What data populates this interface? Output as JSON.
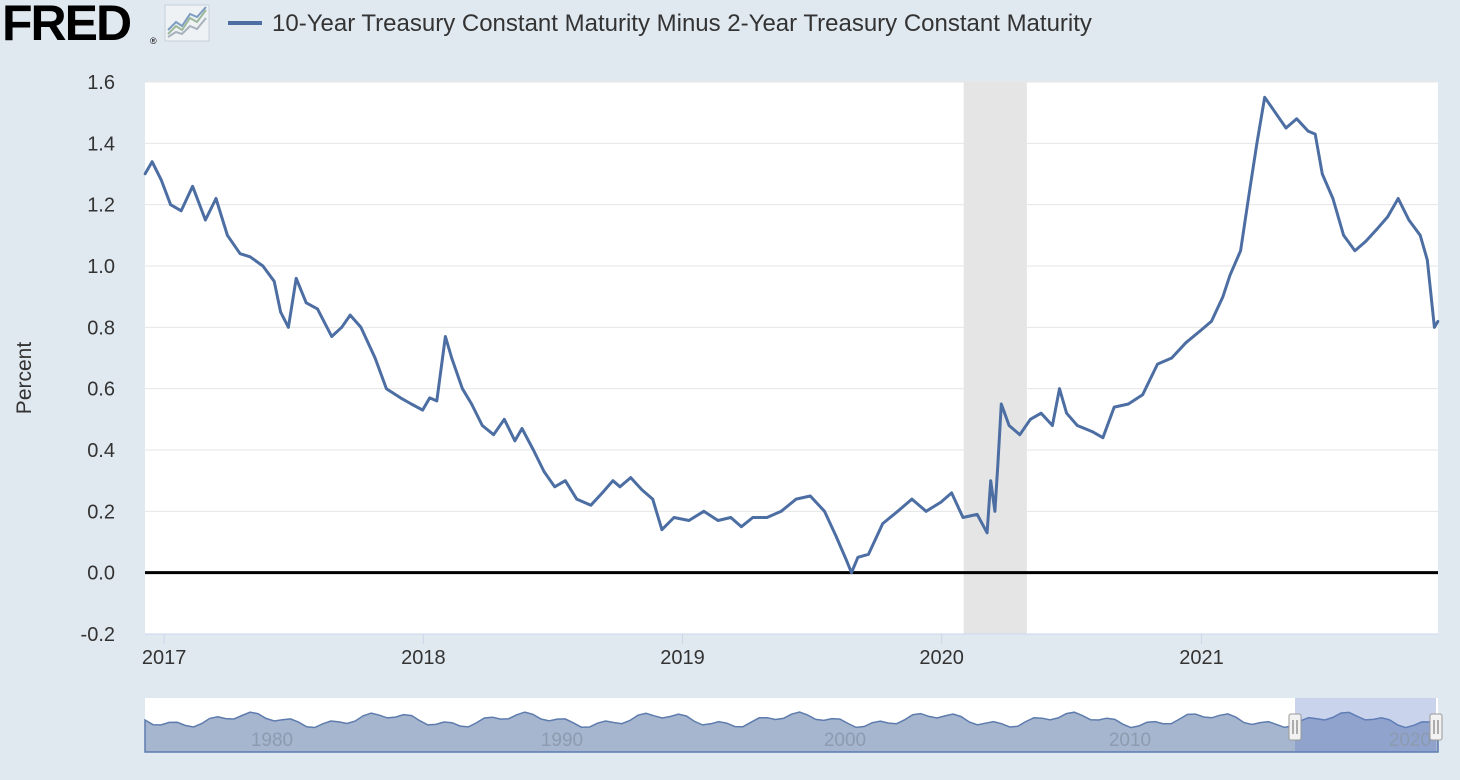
{
  "header": {
    "logo_text": "FRED",
    "logo_reg": "®",
    "series_title": "10-Year Treasury Constant Maturity Minus 2-Year Treasury Constant Maturity"
  },
  "colors": {
    "series": "#4d6ea3",
    "page_bg": "#e1e9f0",
    "plot_bg": "#ffffff",
    "recession": "#e5e5e5",
    "zero_line": "#000000"
  },
  "navigator": {
    "labels": [
      "1980",
      "1990",
      "2000",
      "2010",
      "2020"
    ]
  },
  "chart_data": {
    "type": "line",
    "title": "10-Year Treasury Constant Maturity Minus 2-Year Treasury Constant Maturity",
    "ylabel": "Percent",
    "xlabel": "",
    "ylim": [
      -0.2,
      1.6
    ],
    "yticks": [
      "-0.2",
      "0.0",
      "0.2",
      "0.4",
      "0.6",
      "0.8",
      "1.0",
      "1.2",
      "1.4",
      "1.6"
    ],
    "xticks": [
      "2017",
      "2018",
      "2019",
      "2020",
      "2021"
    ],
    "xlim": [
      "2016-12-05",
      "2021-11-30"
    ],
    "grid": true,
    "reference_line": 0.0,
    "recession_band": [
      "2020-02-01",
      "2020-04-30"
    ],
    "series": [
      {
        "name": "10-Year Treasury Constant Maturity Minus 2-Year Treasury Constant Maturity",
        "x": [
          "2016-12-05",
          "2016-12-15",
          "2016-12-28",
          "2017-01-10",
          "2017-01-25",
          "2017-02-10",
          "2017-02-28",
          "2017-03-15",
          "2017-03-31",
          "2017-04-18",
          "2017-05-02",
          "2017-05-20",
          "2017-06-05",
          "2017-06-14",
          "2017-06-25",
          "2017-07-06",
          "2017-07-20",
          "2017-08-05",
          "2017-08-25",
          "2017-09-08",
          "2017-09-20",
          "2017-10-05",
          "2017-10-25",
          "2017-11-10",
          "2017-11-30",
          "2017-12-15",
          "2017-12-31",
          "2018-01-10",
          "2018-01-20",
          "2018-02-01",
          "2018-02-10",
          "2018-02-25",
          "2018-03-10",
          "2018-03-25",
          "2018-04-10",
          "2018-04-25",
          "2018-05-10",
          "2018-05-20",
          "2018-06-05",
          "2018-06-20",
          "2018-07-05",
          "2018-07-20",
          "2018-08-05",
          "2018-08-25",
          "2018-09-10",
          "2018-09-25",
          "2018-10-05",
          "2018-10-20",
          "2018-11-05",
          "2018-11-20",
          "2018-12-03",
          "2018-12-20",
          "2019-01-10",
          "2019-01-31",
          "2019-02-20",
          "2019-03-10",
          "2019-03-25",
          "2019-04-10",
          "2019-04-30",
          "2019-05-20",
          "2019-06-10",
          "2019-06-30",
          "2019-07-20",
          "2019-08-05",
          "2019-08-20",
          "2019-08-27",
          "2019-09-05",
          "2019-09-20",
          "2019-10-10",
          "2019-10-31",
          "2019-11-20",
          "2019-12-10",
          "2019-12-31",
          "2020-01-15",
          "2020-01-31",
          "2020-02-20",
          "2020-03-05",
          "2020-03-10",
          "2020-03-16",
          "2020-03-20",
          "2020-03-25",
          "2020-04-05",
          "2020-04-20",
          "2020-05-05",
          "2020-05-20",
          "2020-06-05",
          "2020-06-15",
          "2020-06-25",
          "2020-07-10",
          "2020-07-31",
          "2020-08-15",
          "2020-08-31",
          "2020-09-20",
          "2020-10-10",
          "2020-10-31",
          "2020-11-20",
          "2020-12-10",
          "2020-12-31",
          "2021-01-15",
          "2021-01-31",
          "2021-02-10",
          "2021-02-25",
          "2021-03-10",
          "2021-03-20",
          "2021-03-31",
          "2021-04-15",
          "2021-04-30",
          "2021-05-15",
          "2021-05-31",
          "2021-06-10",
          "2021-06-20",
          "2021-07-05",
          "2021-07-20",
          "2021-08-05",
          "2021-08-20",
          "2021-09-05",
          "2021-09-20",
          "2021-10-05",
          "2021-10-20",
          "2021-11-05",
          "2021-11-15",
          "2021-11-25",
          "2021-11-30"
        ],
        "y": [
          1.3,
          1.34,
          1.28,
          1.2,
          1.18,
          1.26,
          1.15,
          1.22,
          1.1,
          1.04,
          1.03,
          1.0,
          0.95,
          0.85,
          0.8,
          0.96,
          0.88,
          0.86,
          0.77,
          0.8,
          0.84,
          0.8,
          0.7,
          0.6,
          0.57,
          0.55,
          0.53,
          0.57,
          0.56,
          0.77,
          0.7,
          0.6,
          0.55,
          0.48,
          0.45,
          0.5,
          0.43,
          0.47,
          0.4,
          0.33,
          0.28,
          0.3,
          0.24,
          0.22,
          0.26,
          0.3,
          0.28,
          0.31,
          0.27,
          0.24,
          0.14,
          0.18,
          0.17,
          0.2,
          0.17,
          0.18,
          0.15,
          0.18,
          0.18,
          0.2,
          0.24,
          0.25,
          0.2,
          0.12,
          0.04,
          0.0,
          0.05,
          0.06,
          0.16,
          0.2,
          0.24,
          0.2,
          0.23,
          0.26,
          0.18,
          0.19,
          0.13,
          0.3,
          0.2,
          0.35,
          0.55,
          0.48,
          0.45,
          0.5,
          0.52,
          0.48,
          0.6,
          0.52,
          0.48,
          0.46,
          0.44,
          0.54,
          0.55,
          0.58,
          0.68,
          0.7,
          0.75,
          0.79,
          0.82,
          0.9,
          0.97,
          1.05,
          1.25,
          1.4,
          1.55,
          1.5,
          1.45,
          1.48,
          1.44,
          1.43,
          1.3,
          1.22,
          1.1,
          1.05,
          1.08,
          1.12,
          1.16,
          1.22,
          1.15,
          1.1,
          1.02,
          0.8,
          0.82
        ]
      }
    ]
  }
}
